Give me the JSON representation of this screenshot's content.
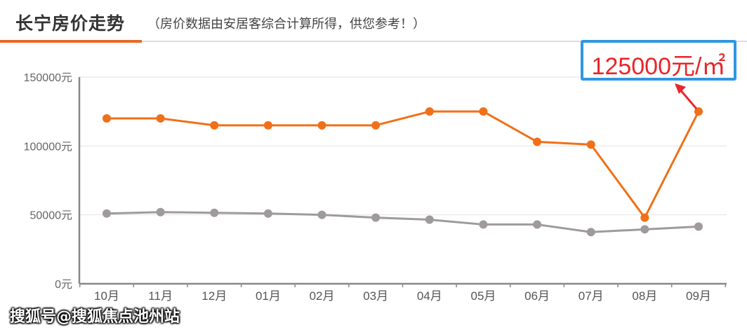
{
  "header": {
    "title": "长宁房价走势",
    "subtitle": "（房价数据由安居客综合计算所得，供您参考！）"
  },
  "callout": {
    "text": "125000元/㎡",
    "border_color": "#2f97e0",
    "text_color": "#e8262a"
  },
  "watermark": "搜狐号@搜狐焦点池州站",
  "chart_data": {
    "type": "line",
    "title": "长宁房价走势",
    "categories": [
      "10月",
      "11月",
      "12月",
      "01月",
      "02月",
      "03月",
      "04月",
      "05月",
      "06月",
      "07月",
      "08月",
      "09月"
    ],
    "y_ticks": [
      "0元",
      "50000元",
      "100000元",
      "150000元"
    ],
    "ylim": [
      0,
      150000
    ],
    "grid": true,
    "series": [
      {
        "color": "#f07018",
        "values": [
          120000,
          120000,
          115000,
          115000,
          115000,
          115000,
          125000,
          125000,
          103000,
          101000,
          48000,
          125000
        ]
      },
      {
        "color": "#9e9a9e",
        "values": [
          51000,
          52000,
          51500,
          51000,
          50000,
          48000,
          46500,
          43000,
          43000,
          37500,
          39500,
          41500
        ]
      }
    ]
  }
}
